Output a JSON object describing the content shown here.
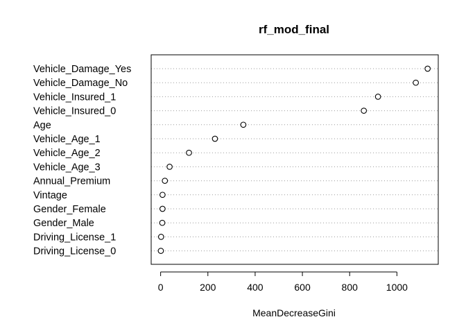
{
  "chart_data": {
    "type": "scatter",
    "title": "rf_mod_final",
    "xlabel": "MeanDecreaseGini",
    "ylabel": "",
    "xlim": [
      -40,
      1175
    ],
    "xticks": [
      0,
      200,
      400,
      600,
      800,
      1000
    ],
    "grid": "dotted horizontal lines per variable",
    "categories": [
      "Vehicle_Damage_Yes",
      "Vehicle_Damage_No",
      "Vehicle_Insured_1",
      "Vehicle_Insured_0",
      "Age",
      "Vehicle_Age_1",
      "Vehicle_Age_2",
      "Vehicle_Age_3",
      "Annual_Premium",
      "Vintage",
      "Gender_Female",
      "Gender_Male",
      "Driving_License_1",
      "Driving_License_0"
    ],
    "values": [
      1130,
      1080,
      920,
      860,
      350,
      230,
      120,
      38,
      18,
      8,
      8,
      7,
      2,
      1
    ],
    "colors": {
      "point_stroke": "#000000",
      "point_fill": "#ffffff",
      "gridline": "#9a9a9a"
    }
  }
}
